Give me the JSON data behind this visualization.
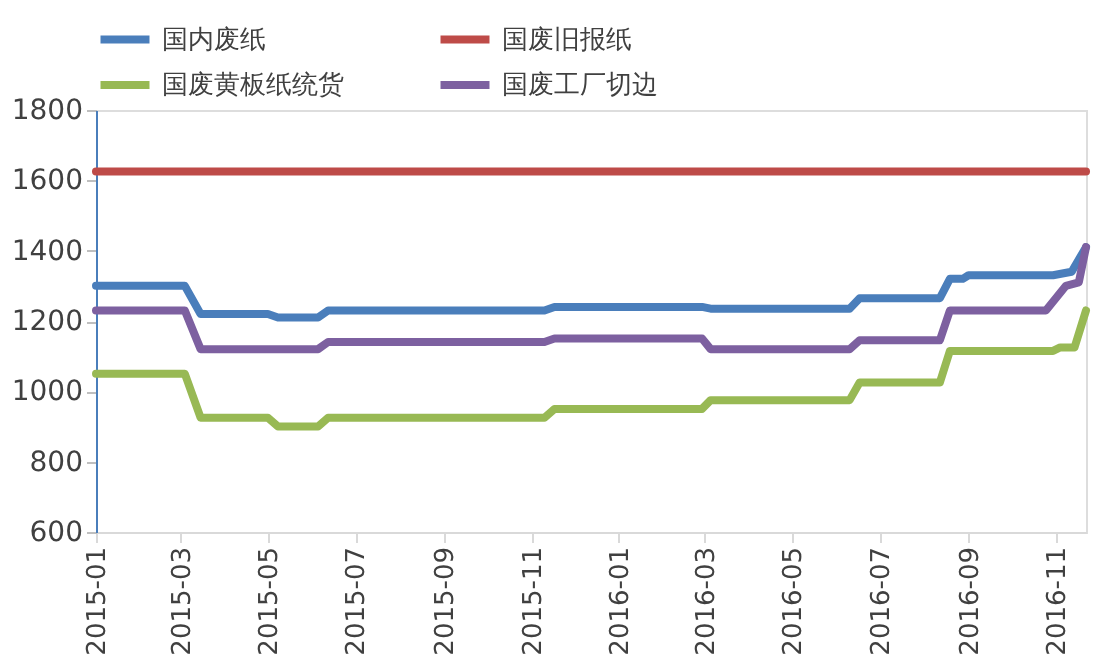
{
  "chart_data": {
    "type": "line",
    "xlim": [
      "2015-01-01",
      "2016-11-22"
    ],
    "xticks": [
      {
        "value": "2015-01-01",
        "label": "2015-01"
      },
      {
        "value": "2015-03-01",
        "label": "2015-03"
      },
      {
        "value": "2015-05-01",
        "label": "2015-05"
      },
      {
        "value": "2015-07-01",
        "label": "2015-07"
      },
      {
        "value": "2015-09-01",
        "label": "2015-09"
      },
      {
        "value": "2015-11-01",
        "label": "2015-11"
      },
      {
        "value": "2016-01-01",
        "label": "2016-01"
      },
      {
        "value": "2016-03-01",
        "label": "2016-03"
      },
      {
        "value": "2016-05-01",
        "label": "2016-05"
      },
      {
        "value": "2016-07-01",
        "label": "2016-07"
      },
      {
        "value": "2016-09-01",
        "label": "2016-09"
      },
      {
        "value": "2016-11-01",
        "label": "2016-11"
      }
    ],
    "ylim": [
      600,
      1800
    ],
    "yticks": [
      600,
      800,
      1000,
      1200,
      1400,
      1600,
      1800
    ],
    "grid": false,
    "legend": "top",
    "marker": "none",
    "line_style": "solid",
    "series": [
      {
        "name": "国内废纸",
        "color": "#4a7ebb",
        "x": [
          "2015-01-01",
          "2015-03-04",
          "2015-03-15",
          "2015-05-01",
          "2015-05-08",
          "2015-06-05",
          "2015-06-12",
          "2015-11-10",
          "2015-11-17",
          "2016-02-28",
          "2016-03-05",
          "2016-06-10",
          "2016-06-17",
          "2016-08-12",
          "2016-08-19",
          "2016-08-28",
          "2016-09-01",
          "2016-10-30",
          "2016-11-12",
          "2016-11-22"
        ],
        "values": [
          1300,
          1300,
          1220,
          1220,
          1210,
          1210,
          1230,
          1230,
          1240,
          1240,
          1235,
          1235,
          1265,
          1265,
          1320,
          1320,
          1330,
          1330,
          1340,
          1410
        ]
      },
      {
        "name": "国废旧报纸",
        "color": "#be4b48",
        "x": [
          "2015-01-01",
          "2016-11-22"
        ],
        "values": [
          1625,
          1625
        ]
      },
      {
        "name": "国废黄板纸统货",
        "color": "#98b954",
        "x": [
          "2015-01-01",
          "2015-03-04",
          "2015-03-15",
          "2015-05-01",
          "2015-05-08",
          "2015-06-05",
          "2015-06-12",
          "2015-11-10",
          "2015-11-17",
          "2016-02-28",
          "2016-03-05",
          "2016-06-10",
          "2016-06-17",
          "2016-08-12",
          "2016-08-19",
          "2016-10-30",
          "2016-11-04",
          "2016-11-14",
          "2016-11-22"
        ],
        "values": [
          1050,
          1050,
          925,
          925,
          900,
          900,
          925,
          925,
          950,
          950,
          975,
          975,
          1025,
          1025,
          1115,
          1115,
          1125,
          1125,
          1230
        ]
      },
      {
        "name": "国废工厂切边",
        "color": "#7d60a0",
        "x": [
          "2015-01-01",
          "2015-03-04",
          "2015-03-15",
          "2015-06-05",
          "2015-06-12",
          "2015-11-10",
          "2015-11-17",
          "2016-02-28",
          "2016-03-05",
          "2016-06-10",
          "2016-06-17",
          "2016-08-12",
          "2016-08-19",
          "2016-10-25",
          "2016-11-08",
          "2016-11-17",
          "2016-11-22"
        ],
        "values": [
          1230,
          1230,
          1120,
          1120,
          1140,
          1140,
          1150,
          1150,
          1120,
          1120,
          1145,
          1145,
          1230,
          1230,
          1300,
          1310,
          1410
        ]
      }
    ]
  }
}
